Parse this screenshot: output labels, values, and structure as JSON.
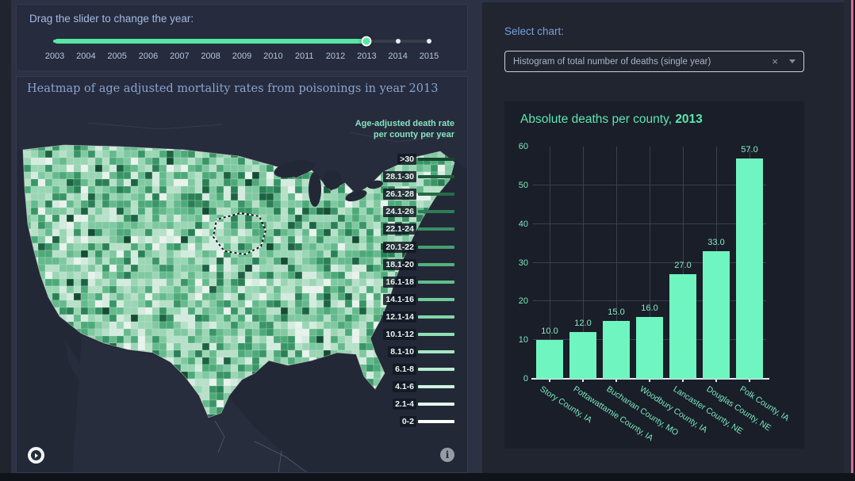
{
  "slider_panel": {
    "label": "Drag the slider to change the year:",
    "years": [
      "2003",
      "2004",
      "2005",
      "2006",
      "2007",
      "2008",
      "2009",
      "2010",
      "2011",
      "2012",
      "2013",
      "2014",
      "2015"
    ],
    "selected_year": "2013",
    "active_track_color": "#57e6a5"
  },
  "map_panel": {
    "title": "Heatmap of age adjusted mortality rates from poisonings in year 2013",
    "legend": {
      "title_line1": "Age-adjusted death rate",
      "title_line2": "per county per year",
      "items": [
        {
          "label": ">30",
          "color": "#14482f"
        },
        {
          "label": "28.1-30",
          "color": "#1c5a3c"
        },
        {
          "label": "26.1-28",
          "color": "#256b48"
        },
        {
          "label": "24.1-26",
          "color": "#2e7d55"
        },
        {
          "label": "22.1-24",
          "color": "#398f62"
        },
        {
          "label": "20.1-22",
          "color": "#45a06f"
        },
        {
          "label": "18.1-20",
          "color": "#52b17d"
        },
        {
          "label": "16.1-18",
          "color": "#60c08b"
        },
        {
          "label": "14.1-16",
          "color": "#6fcd99"
        },
        {
          "label": "12.1-14",
          "color": "#7fd8a7"
        },
        {
          "label": "10.1-12",
          "color": "#90e0b5"
        },
        {
          "label": "8.1-10",
          "color": "#a3e8c3"
        },
        {
          "label": "6.1-8",
          "color": "#b7eed1"
        },
        {
          "label": "4.1-6",
          "color": "#ccf4df"
        },
        {
          "label": "2.1-4",
          "color": "#e2f9ed"
        },
        {
          "label": "0-2",
          "color": "#ffffff"
        }
      ]
    },
    "county_palette": [
      {
        "color": "#e9f3ed",
        "w": 6
      },
      {
        "color": "#d4ecdf",
        "w": 8
      },
      {
        "color": "#b6e1c8",
        "w": 14
      },
      {
        "color": "#99d6b4",
        "w": 16
      },
      {
        "color": "#7ec9a0",
        "w": 16
      },
      {
        "color": "#64ba8c",
        "w": 12
      },
      {
        "color": "#4caa79",
        "w": 10
      },
      {
        "color": "#389566",
        "w": 8
      },
      {
        "color": "#2a8056",
        "w": 5
      },
      {
        "color": "#1c6343",
        "w": 3
      },
      {
        "color": "#134c32",
        "w": 2
      }
    ],
    "icons": {
      "bottom_left": "map-logo",
      "bottom_right": "map-info",
      "info_glyph": "i"
    }
  },
  "right_panel": {
    "select_label": "Select chart:",
    "dropdown": {
      "value": "Histogram of total number of deaths (single year)",
      "clear_glyph": "×"
    }
  },
  "chart_data": {
    "type": "bar",
    "title_prefix": "Absolute deaths per county, ",
    "title_year": "2013",
    "categories": [
      "Story County, IA",
      "Pottawattamie County, IA",
      "Buchanan County, MO",
      "Woodbury County, IA",
      "Lancaster County, NE",
      "Douglas County, NE",
      "Polk County, IA"
    ],
    "values": [
      10.0,
      12.0,
      15.0,
      16.0,
      27.0,
      33.0,
      57.0
    ],
    "bar_labels": [
      "10.0",
      "12.0",
      "15.0",
      "16.0",
      "27.0",
      "33.0",
      "57.0"
    ],
    "xlabel": "",
    "ylabel": "",
    "ylim": [
      0,
      60
    ],
    "yticks": [
      0,
      10,
      20,
      30,
      40,
      50,
      60
    ],
    "bar_color": "#6ff5c0",
    "grid": true,
    "legend_position": "none"
  }
}
